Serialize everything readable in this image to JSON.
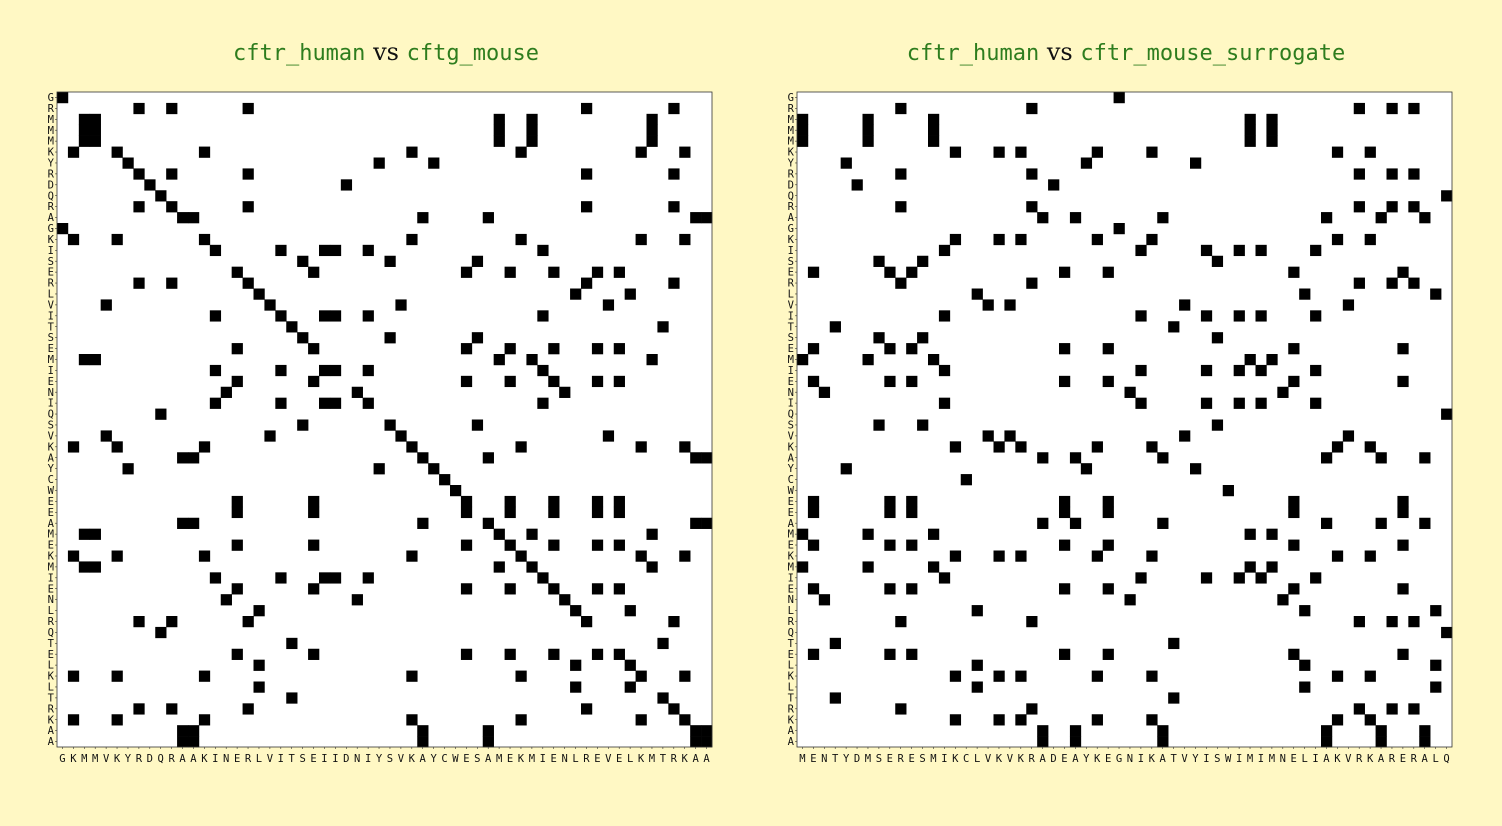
{
  "chart_data": [
    {
      "type": "heatmap",
      "title": {
        "seq_a": "cftr_human",
        "vs": "vs",
        "seq_b": "cftg_mouse"
      },
      "x_sequence": "GKMMVKYRDQRAAKINERLVITSEIIDNIYSVKAYCWESAMEKMIENLREVELKMTRKAA",
      "y_sequence": "GRMMMKYRDQRAGKISERLVITSEMIENIQSVKAYCWEEAMEKMIENLRQTELKLTRKAA",
      "match_rule": "cell is black where x letter equals y letter",
      "colors": {
        "match": "#000000",
        "mismatch": "#ffffff"
      },
      "grid": false
    },
    {
      "type": "heatmap",
      "title": {
        "seq_a": "cftr_human",
        "vs": "vs",
        "seq_b": "cftr_mouse_surrogate"
      },
      "x_sequence": "MENTYDMSERESMIKCLVKVKRADEAYKEGNIKATVYISWIMIMNELIAKVRKARERALQ",
      "y_sequence": "GRMMMKYRDQRAGKISERLVITSEMIENIQSVKAYCWEEAMEKMIENLRQTELKLTRKAA",
      "match_rule": "cell is black where x letter equals y letter",
      "colors": {
        "match": "#000000",
        "mismatch": "#ffffff"
      },
      "grid": false
    }
  ]
}
